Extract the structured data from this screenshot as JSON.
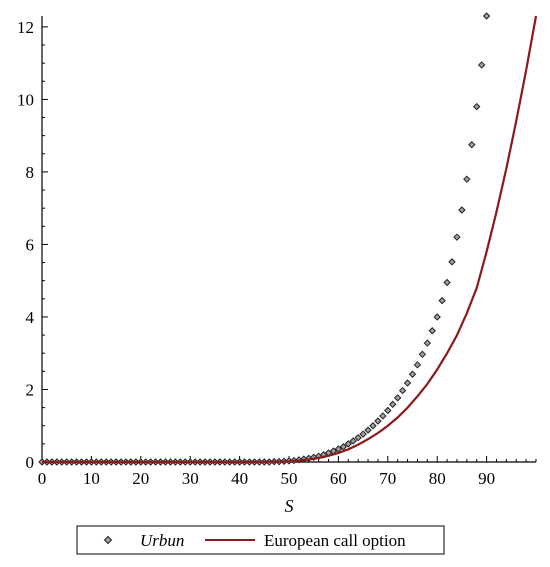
{
  "chart_data": {
    "type": "line",
    "title": "",
    "xlabel": "S",
    "ylabel": "",
    "xlim": [
      0,
      100
    ],
    "ylim": [
      0,
      12.3
    ],
    "x_ticks": [
      0,
      10,
      20,
      30,
      40,
      50,
      60,
      70,
      80,
      90
    ],
    "y_ticks": [
      0,
      2,
      4,
      6,
      8,
      10,
      12
    ],
    "grid": false,
    "legend": {
      "placement": "bottom"
    },
    "series": [
      {
        "name": "Urbun",
        "style": "diamond-markers",
        "color": "#555555",
        "x": [
          0,
          1,
          2,
          3,
          4,
          5,
          6,
          7,
          8,
          9,
          10,
          11,
          12,
          13,
          14,
          15,
          16,
          17,
          18,
          19,
          20,
          21,
          22,
          23,
          24,
          25,
          26,
          27,
          28,
          29,
          30,
          31,
          32,
          33,
          34,
          35,
          36,
          37,
          38,
          39,
          40,
          41,
          42,
          43,
          44,
          45,
          46,
          47,
          48,
          49,
          50,
          51,
          52,
          53,
          54,
          55,
          56,
          57,
          58,
          59,
          60,
          61,
          62,
          63,
          64,
          65,
          66,
          67,
          68,
          69,
          70,
          71,
          72,
          73,
          74,
          75,
          76,
          77,
          78,
          79,
          80,
          81,
          82,
          83,
          84,
          85,
          86,
          87,
          88,
          89,
          90
        ],
        "y": [
          0,
          0,
          0,
          0,
          0,
          0,
          0,
          0,
          0,
          0,
          0,
          0,
          0,
          0,
          0,
          0,
          0,
          0,
          0,
          0,
          0,
          0,
          0,
          0,
          0,
          0,
          0,
          0,
          0,
          0,
          0,
          0,
          0,
          0,
          0,
          0,
          0,
          0,
          0,
          0,
          0,
          0,
          0,
          0,
          0,
          0,
          0,
          0.01,
          0.01,
          0.02,
          0.03,
          0.04,
          0.06,
          0.08,
          0.1,
          0.13,
          0.16,
          0.2,
          0.25,
          0.3,
          0.36,
          0.42,
          0.5,
          0.58,
          0.67,
          0.77,
          0.88,
          1.0,
          1.13,
          1.27,
          1.42,
          1.59,
          1.77,
          1.97,
          2.18,
          2.42,
          2.68,
          2.97,
          3.28,
          3.62,
          4.0,
          4.45,
          4.95,
          5.52,
          6.2,
          6.95,
          7.8,
          8.75,
          9.8,
          10.95,
          12.3
        ]
      },
      {
        "name": "European call option",
        "style": "line",
        "color": "#8b1a1a",
        "x": [
          0,
          10,
          20,
          30,
          40,
          45,
          48,
          50,
          52,
          54,
          56,
          58,
          60,
          62,
          64,
          66,
          68,
          70,
          72,
          74,
          76,
          78,
          80,
          82,
          84,
          86,
          88,
          90,
          92,
          94,
          96,
          98,
          100
        ],
        "y": [
          0,
          0,
          0,
          0,
          0,
          0.005,
          0.01,
          0.02,
          0.04,
          0.07,
          0.11,
          0.17,
          0.25,
          0.35,
          0.48,
          0.63,
          0.8,
          1.0,
          1.23,
          1.5,
          1.81,
          2.15,
          2.55,
          3.0,
          3.5,
          4.1,
          4.8,
          5.8,
          6.9,
          8.1,
          9.4,
          10.8,
          12.3
        ]
      }
    ]
  }
}
